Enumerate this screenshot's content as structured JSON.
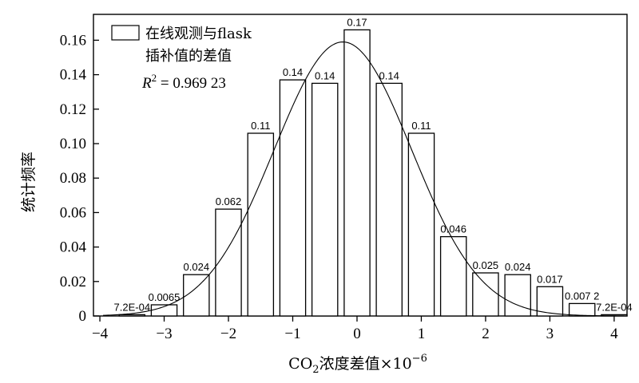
{
  "chart_data": {
    "type": "bar",
    "title": "",
    "xlabel": {
      "prefix": "CO",
      "subscript": "2",
      "middle": "浓度差值×10",
      "superscript": "−6"
    },
    "ylabel": "统计频率",
    "xlim": [
      -4.1,
      4.2
    ],
    "ylim": [
      0,
      0.175
    ],
    "xticks": [
      -4,
      -3,
      -2,
      -1,
      0,
      1,
      2,
      3,
      4
    ],
    "yticks": [
      0,
      0.02,
      0.04,
      0.06,
      0.08,
      0.1,
      0.12,
      0.14,
      0.16
    ],
    "ytick_labels": [
      "0",
      "0.02",
      "0.04",
      "0.06",
      "0.08",
      "0.10",
      "0.12",
      "0.14",
      "0.16"
    ],
    "bin_width": 0.5,
    "bins": [
      {
        "center": -3.5,
        "value": 0.00072,
        "label": "7.2E-04"
      },
      {
        "center": -3.0,
        "value": 0.0065,
        "label": "0.0065"
      },
      {
        "center": -2.5,
        "value": 0.024,
        "label": "0.024"
      },
      {
        "center": -2.0,
        "value": 0.062,
        "label": "0.062"
      },
      {
        "center": -1.5,
        "value": 0.106,
        "label": "0.11"
      },
      {
        "center": -1.0,
        "value": 0.137,
        "label": "0.14"
      },
      {
        "center": -0.5,
        "value": 0.135,
        "label": "0.14"
      },
      {
        "center": 0.0,
        "value": 0.166,
        "label": "0.17"
      },
      {
        "center": 0.5,
        "value": 0.135,
        "label": "0.14"
      },
      {
        "center": 1.0,
        "value": 0.106,
        "label": "0.11"
      },
      {
        "center": 1.5,
        "value": 0.046,
        "label": "0.046"
      },
      {
        "center": 2.0,
        "value": 0.025,
        "label": "0.025"
      },
      {
        "center": 2.5,
        "value": 0.024,
        "label": "0.024"
      },
      {
        "center": 3.0,
        "value": 0.017,
        "label": "0.017"
      },
      {
        "center": 3.5,
        "value": 0.0072,
        "label": "0.007 2"
      },
      {
        "center": 4.0,
        "value": 0.00072,
        "label": "7.2E-04"
      }
    ],
    "fit_curve": {
      "type": "gaussian",
      "peak": 0.159,
      "mean": -0.22,
      "sigma": 1.07
    },
    "legend": {
      "position": "top-left",
      "label_line1": "在线观测与flask",
      "label_line2": "插补值的差值"
    },
    "r_squared": {
      "symbol": "R",
      "exponent": "2",
      "text": " = 0.969 23"
    },
    "grid": false
  }
}
